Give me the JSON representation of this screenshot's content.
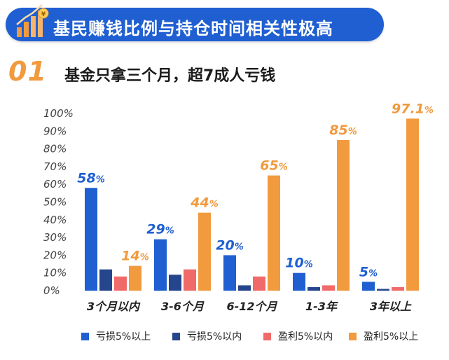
{
  "header": {
    "title": "基民赚钱比例与持仓时间相关性极高",
    "icon": "bar-chart-coin-icon",
    "color": "#1f5fd1"
  },
  "section": {
    "number": "01",
    "title": "基金只拿三个月，超7成人亏钱",
    "number_color": "#f19a3e"
  },
  "chart_data": {
    "type": "bar",
    "categories": [
      "3个月以内",
      "3-6个月",
      "6-12个月",
      "1-3年",
      "3年以上"
    ],
    "series": [
      {
        "name": "亏损5%以上",
        "color": "#1f5fd1",
        "values": [
          58,
          29,
          20,
          10,
          5
        ]
      },
      {
        "name": "亏损5%以内",
        "color": "#25468c",
        "values": [
          12,
          9,
          3,
          2,
          1
        ]
      },
      {
        "name": "盈利5%以内",
        "color": "#f06a6a",
        "values": [
          8,
          12,
          8,
          3,
          2
        ]
      },
      {
        "name": "盈利5%以上",
        "color": "#f19a3e",
        "values": [
          14,
          44,
          65,
          85,
          97.1
        ]
      }
    ],
    "data_labels": [
      {
        "category_index": 0,
        "series_index": 0,
        "main": "58",
        "unit": "%"
      },
      {
        "category_index": 0,
        "series_index": 3,
        "main": "14",
        "unit": "%"
      },
      {
        "category_index": 1,
        "series_index": 0,
        "main": "29",
        "unit": "%"
      },
      {
        "category_index": 1,
        "series_index": 3,
        "main": "44",
        "unit": "%"
      },
      {
        "category_index": 2,
        "series_index": 0,
        "main": "20",
        "unit": "%"
      },
      {
        "category_index": 2,
        "series_index": 3,
        "main": "65",
        "unit": "%"
      },
      {
        "category_index": 3,
        "series_index": 0,
        "main": "10",
        "unit": "%"
      },
      {
        "category_index": 3,
        "series_index": 3,
        "main": "85",
        "unit": "%"
      },
      {
        "category_index": 4,
        "series_index": 0,
        "main": "5",
        "unit": "%"
      },
      {
        "category_index": 4,
        "series_index": 3,
        "main": "97.1",
        "unit": "%"
      }
    ],
    "yticks": [
      "0%",
      "10%",
      "20%",
      "30%",
      "40%",
      "50%",
      "60%",
      "70%",
      "80%",
      "90%",
      "100%"
    ],
    "ylim": [
      0,
      100
    ],
    "grid": false,
    "legend_position": "bottom"
  }
}
